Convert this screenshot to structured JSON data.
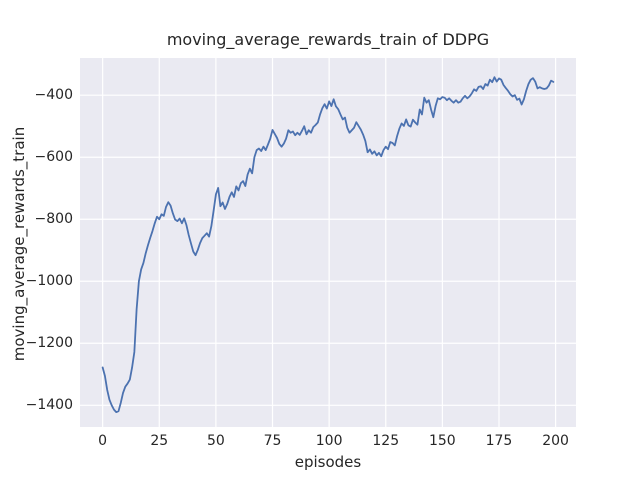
{
  "figure": {
    "title": "moving_average_rewards_train of DDPG",
    "xlabel": "episodes",
    "ylabel": "moving_average_rewards_train"
  },
  "colors": {
    "line": "#4c72b0",
    "plot_background": "#eaeaf2",
    "gridline": "#ffffff",
    "text": "#262626",
    "figure_background": "#ffffff"
  },
  "chart_data": {
    "type": "line",
    "title": "moving_average_rewards_train of DDPG",
    "xlabel": "episodes",
    "ylabel": "moving_average_rewards_train",
    "xlim": [
      -10,
      209
    ],
    "ylim": [
      -1470,
      -280
    ],
    "x_ticks": [
      0,
      25,
      50,
      75,
      100,
      125,
      150,
      175,
      200
    ],
    "y_ticks": [
      -400,
      -600,
      -800,
      -1000,
      -1200,
      -1400
    ],
    "grid": true,
    "legend": false,
    "series": [
      {
        "name": "moving_average_rewards_train",
        "x": [
          0,
          1,
          2,
          3,
          4,
          5,
          6,
          7,
          8,
          9,
          10,
          11,
          12,
          13,
          14,
          15,
          16,
          17,
          18,
          19,
          20,
          21,
          22,
          23,
          24,
          25,
          26,
          27,
          28,
          29,
          30,
          31,
          32,
          33,
          34,
          35,
          36,
          37,
          38,
          39,
          40,
          41,
          42,
          43,
          44,
          45,
          46,
          47,
          48,
          49,
          50,
          51,
          52,
          53,
          54,
          55,
          56,
          57,
          58,
          59,
          60,
          61,
          62,
          63,
          64,
          65,
          66,
          67,
          68,
          69,
          70,
          71,
          72,
          73,
          74,
          75,
          76,
          77,
          78,
          79,
          80,
          81,
          82,
          83,
          84,
          85,
          86,
          87,
          88,
          89,
          90,
          91,
          92,
          93,
          94,
          95,
          96,
          97,
          98,
          99,
          100,
          101,
          102,
          103,
          104,
          105,
          106,
          107,
          108,
          109,
          110,
          111,
          112,
          113,
          114,
          115,
          116,
          117,
          118,
          119,
          120,
          121,
          122,
          123,
          124,
          125,
          126,
          127,
          128,
          129,
          130,
          131,
          132,
          133,
          134,
          135,
          136,
          137,
          138,
          139,
          140,
          141,
          142,
          143,
          144,
          145,
          146,
          147,
          148,
          149,
          150,
          151,
          152,
          153,
          154,
          155,
          156,
          157,
          158,
          159,
          160,
          161,
          162,
          163,
          164,
          165,
          166,
          167,
          168,
          169,
          170,
          171,
          172,
          173,
          174,
          175,
          176,
          177,
          178,
          179,
          180,
          181,
          182,
          183,
          184,
          185,
          186,
          187,
          188,
          189,
          190,
          191,
          192,
          193,
          194,
          195,
          196,
          197,
          198,
          199
        ],
        "y": [
          -1278,
          -1305,
          -1350,
          -1382,
          -1400,
          -1414,
          -1422,
          -1419,
          -1392,
          -1360,
          -1340,
          -1330,
          -1317,
          -1278,
          -1228,
          -1090,
          -1000,
          -962,
          -941,
          -910,
          -884,
          -860,
          -838,
          -813,
          -792,
          -800,
          -784,
          -789,
          -760,
          -745,
          -756,
          -781,
          -801,
          -806,
          -798,
          -813,
          -797,
          -819,
          -851,
          -878,
          -904,
          -916,
          -899,
          -877,
          -861,
          -853,
          -845,
          -856,
          -822,
          -772,
          -720,
          -699,
          -758,
          -746,
          -767,
          -751,
          -728,
          -713,
          -728,
          -694,
          -707,
          -684,
          -677,
          -693,
          -656,
          -637,
          -652,
          -600,
          -577,
          -572,
          -580,
          -566,
          -577,
          -559,
          -540,
          -512,
          -525,
          -538,
          -557,
          -566,
          -556,
          -540,
          -513,
          -521,
          -517,
          -529,
          -521,
          -528,
          -515,
          -500,
          -526,
          -513,
          -521,
          -503,
          -496,
          -488,
          -462,
          -442,
          -429,
          -443,
          -420,
          -435,
          -413,
          -436,
          -445,
          -462,
          -478,
          -472,
          -505,
          -521,
          -513,
          -505,
          -487,
          -499,
          -511,
          -527,
          -548,
          -584,
          -575,
          -589,
          -581,
          -594,
          -586,
          -597,
          -577,
          -566,
          -574,
          -551,
          -554,
          -562,
          -532,
          -508,
          -491,
          -499,
          -478,
          -497,
          -501,
          -479,
          -488,
          -495,
          -446,
          -462,
          -408,
          -424,
          -416,
          -446,
          -471,
          -435,
          -410,
          -413,
          -406,
          -408,
          -416,
          -410,
          -418,
          -424,
          -416,
          -424,
          -421,
          -410,
          -402,
          -410,
          -404,
          -394,
          -381,
          -386,
          -373,
          -371,
          -380,
          -364,
          -369,
          -350,
          -358,
          -342,
          -356,
          -346,
          -350,
          -367,
          -377,
          -386,
          -397,
          -404,
          -400,
          -415,
          -411,
          -430,
          -413,
          -386,
          -364,
          -350,
          -345,
          -356,
          -378,
          -374,
          -378,
          -380,
          -378,
          -369,
          -353,
          -357
        ]
      }
    ]
  }
}
